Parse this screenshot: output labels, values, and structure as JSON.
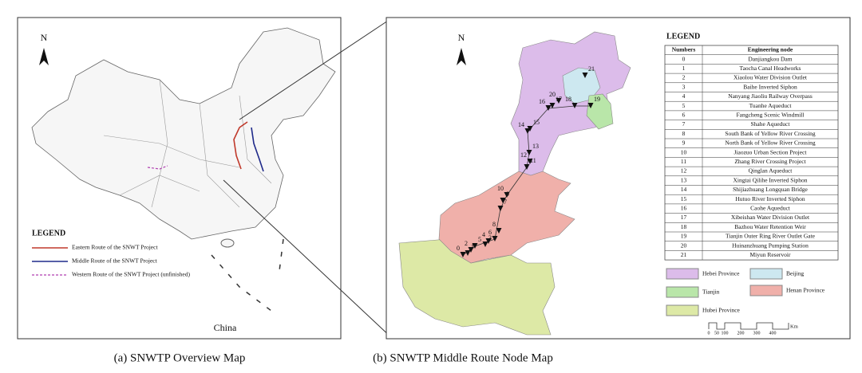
{
  "overview_map": {
    "north": "N",
    "legend": {
      "title": "LEGEND",
      "items": [
        "Eastern Route of the SNWT Project",
        "Middle Route of the SNWT Project",
        "Western Route of the SNWT Project (unfinished)"
      ]
    },
    "label": "China",
    "caption": "(a) SNWTP Overview Map"
  },
  "node_map": {
    "north": "N",
    "legend_title": "LEGEND",
    "table": {
      "header": [
        "Numbers",
        "Engineering node"
      ],
      "rows": [
        [
          "0",
          "Danjiangkou Dam"
        ],
        [
          "1",
          "Taocha Canal Headworks"
        ],
        [
          "2",
          "Xiaolou Water Division Outlet"
        ],
        [
          "3",
          "Baihe Inverted Siphon"
        ],
        [
          "4",
          "Nanyang Jiaoliu Railway Overpass"
        ],
        [
          "5",
          "Tuanhe Aqueduct"
        ],
        [
          "6",
          "Fangcheng Scenic Windmill"
        ],
        [
          "7",
          "Shahe Aqueduct"
        ],
        [
          "8",
          "South Bank of Yellow River Crossing"
        ],
        [
          "9",
          "North Bank of Yellow River Crossing"
        ],
        [
          "10",
          "Jiaozuo Urban Section Project"
        ],
        [
          "11",
          "Zhang River Crossing Project"
        ],
        [
          "12",
          "Qinglan Aqueduct"
        ],
        [
          "13",
          "Xingtai Qilihe Inverted Siphon"
        ],
        [
          "14",
          "Shijiazhuang Longquan Bridge"
        ],
        [
          "15",
          "Hutuo River Inverted Siphon"
        ],
        [
          "16",
          "Caohe Aqueduct"
        ],
        [
          "17",
          "Xibeishan Water Division Outlet"
        ],
        [
          "18",
          "Bazhou Water Retention Weir"
        ],
        [
          "19",
          "Tianjin Outer Ring River Outlet Gate"
        ],
        [
          "20",
          "Huinanzhuang Pumping Station"
        ],
        [
          "21",
          "Miyun Reservoir"
        ]
      ]
    },
    "provinces": [
      "Hebei Province",
      "Beijing",
      "Tianjin",
      "Henan Province",
      "Hubei Province"
    ],
    "scale_bar": {
      "ticks": [
        "0",
        "50",
        "100",
        "200",
        "300",
        "400"
      ],
      "unit": "Km"
    },
    "caption": "(b) SNWTP Middle Route Node Map"
  }
}
